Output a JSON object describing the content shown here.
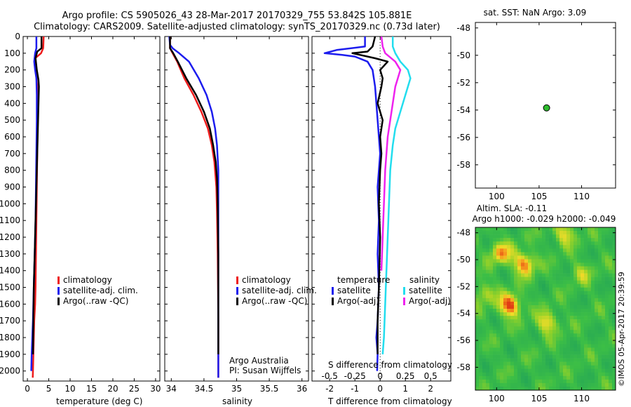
{
  "header": {
    "title_line1": "Argo profile: CS 5905026_43 28-Mar-2017 20170329_755 53.842S 105.881E",
    "title_line2": "Climatology: CARS2009. Satellite-adjusted climatology: synTS_20170329.nc (0.73d later)"
  },
  "colors": {
    "climatology": "#ee1c1c",
    "satellite": "#1c1cee",
    "argo": "#000000",
    "sat_salinity": "#22ddee",
    "argo_salinity": "#ee22ee",
    "dot": "#2dbb2d"
  },
  "footer": {
    "operator": "Argo Australia",
    "pi": "PI: Susan Wijffels",
    "credit": "©IMOS 05-Apr-2017 20:39:59"
  },
  "chart_data": [
    {
      "id": "temperature",
      "type": "line",
      "xlabel": "temperature (deg C)",
      "xlim": [
        -1,
        31
      ],
      "ylim": [
        2060,
        0
      ],
      "xticks": [
        "0",
        "5",
        "10",
        "15",
        "20",
        "25",
        "30"
      ],
      "yticks": [
        "0",
        "100",
        "200",
        "300",
        "400",
        "500",
        "600",
        "700",
        "800",
        "900",
        "1000",
        "1100",
        "1200",
        "1300",
        "1400",
        "1500",
        "1600",
        "1700",
        "1800",
        "1900",
        "2000"
      ],
      "legend": [
        "climatology",
        "satellite-adj. clim.",
        "Argo(..raw -QC)"
      ],
      "series": [
        {
          "name": "climatology",
          "color": "#ee1c1c",
          "x": [
            3.8,
            3.7,
            3.2,
            1.8,
            1.7,
            2.0,
            2.3,
            2.4,
            2.4,
            2.3,
            2.2,
            2.1,
            2.0,
            1.9,
            1.8,
            1.6,
            1.5,
            1.4,
            1.3,
            1.25
          ],
          "y": [
            0,
            70,
            100,
            130,
            170,
            220,
            300,
            400,
            500,
            700,
            900,
            1100,
            1300,
            1500,
            1600,
            1700,
            1800,
            1900,
            2000,
            2040
          ]
        },
        {
          "name": "satellite-adj. clim.",
          "color": "#1c1cee",
          "x": [
            2.1,
            2.1,
            1.8,
            1.6,
            1.8,
            2.1,
            2.2,
            2.2,
            2.1,
            2.0,
            1.9,
            1.7,
            1.5,
            1.3,
            1.0,
            0.9
          ],
          "y": [
            0,
            70,
            100,
            150,
            200,
            250,
            350,
            500,
            700,
            900,
            1100,
            1300,
            1500,
            1700,
            1900,
            2000
          ]
        },
        {
          "name": "Argo(..raw -QC)",
          "color": "#000000",
          "x": [
            3.3,
            3.3,
            2.3,
            1.9,
            2.2,
            2.6,
            2.7,
            2.6,
            2.5,
            2.4,
            2.3,
            2.2,
            2.1,
            2.0,
            1.9,
            1.8,
            1.7,
            1.5,
            1.4,
            1.3
          ],
          "y": [
            0,
            70,
            90,
            130,
            200,
            260,
            300,
            400,
            500,
            600,
            700,
            800,
            900,
            1000,
            1100,
            1200,
            1300,
            1500,
            1700,
            1900
          ]
        }
      ]
    },
    {
      "id": "salinity",
      "type": "line",
      "xlabel": "salinity",
      "xlim": [
        33.9,
        36.1
      ],
      "ylim": [
        2060,
        0
      ],
      "xticks": [
        "34",
        "34.5",
        "35",
        "35.5",
        "36"
      ],
      "legend": [
        "climatology",
        "satellite-adj. clim.",
        "Argo(..raw -QC)"
      ],
      "series": [
        {
          "name": "climatology",
          "color": "#ee1c1c",
          "x": [
            33.98,
            33.98,
            34.02,
            34.09,
            34.2,
            34.34,
            34.46,
            34.56,
            34.62,
            34.66,
            34.69,
            34.7,
            34.71,
            34.72,
            34.72
          ],
          "y": [
            0,
            70,
            100,
            150,
            250,
            350,
            450,
            550,
            650,
            750,
            900,
            1050,
            1300,
            1700,
            2040
          ]
        },
        {
          "name": "satellite-adj. clim.",
          "color": "#1c1cee",
          "x": [
            33.97,
            33.98,
            34.02,
            34.12,
            34.27,
            34.42,
            34.54,
            34.62,
            34.67,
            34.7,
            34.72,
            34.72,
            34.72
          ],
          "y": [
            0,
            50,
            70,
            100,
            150,
            250,
            350,
            450,
            550,
            650,
            800,
            1200,
            2040
          ]
        },
        {
          "name": "Argo(..raw -QC)",
          "color": "#000000",
          "x": [
            33.98,
            33.98,
            34.03,
            34.1,
            34.23,
            34.38,
            34.5,
            34.59,
            34.64,
            34.68,
            34.7,
            34.71,
            34.72,
            34.72
          ],
          "y": [
            0,
            70,
            100,
            150,
            250,
            350,
            450,
            550,
            650,
            750,
            850,
            1000,
            1300,
            1900
          ]
        }
      ]
    },
    {
      "id": "difference",
      "type": "line",
      "xlabel": "T difference from climatology",
      "xlabel_top": "S difference from climatology",
      "xlim": [
        -2.7,
        2.8
      ],
      "ylim": [
        2060,
        0
      ],
      "xticks_bottom": [
        "-2",
        "-1",
        "0",
        "1",
        "2"
      ],
      "xticks_top": [
        "-0.5",
        "-0.25",
        "0",
        "0.25",
        "0.5"
      ],
      "legend_left_title": "temperature",
      "legend_right_title": "salinity",
      "legend_left": [
        "satellite",
        "Argo(-adj)"
      ],
      "legend_right": [
        "satellite",
        "Argo(-adj)"
      ],
      "series": [
        {
          "name": "temperature satellite",
          "color": "#1c1cee",
          "x": [
            -0.6,
            -0.6,
            -1.7,
            -2.2,
            -1.5,
            -1.0,
            -0.5,
            -0.3,
            -0.2,
            -0.15,
            -0.1,
            -0.05,
            0.0,
            -0.05,
            -0.1,
            -0.05,
            -0.1,
            -0.05,
            -0.1,
            -0.15,
            -0.1,
            -0.12
          ],
          "y": [
            0,
            60,
            80,
            100,
            110,
            120,
            150,
            200,
            300,
            400,
            500,
            600,
            700,
            800,
            900,
            1100,
            1300,
            1500,
            1700,
            1800,
            1900,
            2000
          ]
        },
        {
          "name": "temperature Argo(-adj)",
          "color": "#000000",
          "x": [
            -0.2,
            -0.3,
            -0.5,
            -1.1,
            -0.8,
            -0.2,
            0.3,
            0.0,
            0.1,
            0.05,
            -0.1,
            0.1,
            0.0,
            0.05,
            0.0,
            -0.05,
            0.0,
            -0.05,
            -0.1,
            -0.1,
            -0.1
          ],
          "y": [
            0,
            60,
            90,
            100,
            110,
            130,
            150,
            200,
            250,
            300,
            400,
            500,
            600,
            700,
            800,
            1000,
            1200,
            1500,
            1700,
            1800,
            1900
          ]
        },
        {
          "name": "salinity satellite",
          "color": "#22ddee",
          "x": [
            0.5,
            0.5,
            0.6,
            0.8,
            1.1,
            1.2,
            1.0,
            0.8,
            0.6,
            0.5,
            0.4,
            0.35,
            0.3,
            0.25,
            0.2,
            0.15,
            0.1
          ],
          "y": [
            0,
            60,
            100,
            150,
            200,
            250,
            350,
            450,
            550,
            650,
            800,
            1000,
            1200,
            1400,
            1600,
            1800,
            1900
          ]
        },
        {
          "name": "salinity Argo(-adj)",
          "color": "#ee22ee",
          "x": [
            0.05,
            0.1,
            0.2,
            0.6,
            0.8,
            0.7,
            0.6,
            0.5,
            0.4,
            0.3,
            0.25,
            0.2,
            0.15,
            0.1,
            0.05
          ],
          "y": [
            0,
            60,
            100,
            150,
            200,
            250,
            300,
            400,
            500,
            600,
            700,
            800,
            1000,
            1200,
            1400
          ]
        }
      ]
    },
    {
      "id": "position-map",
      "type": "scatter",
      "title": "sat. SST: NaN Argo: 3.09",
      "xlim": [
        97.5,
        114
      ],
      "ylim": [
        -59.7,
        -47.6
      ],
      "xticks": [
        "100",
        "105",
        "110"
      ],
      "yticks": [
        "-48",
        "-50",
        "-52",
        "-54",
        "-56",
        "-58"
      ],
      "points": [
        {
          "lon": 105.881,
          "lat": -53.842
        }
      ]
    },
    {
      "id": "sla-map",
      "type": "heatmap",
      "title_line1": "Altim. SLA: -0.11",
      "title_line2": "Argo h1000: -0.029 h2000: -0.049",
      "xlim": [
        97.5,
        114
      ],
      "ylim": [
        -59.7,
        -47.6
      ],
      "xticks": [
        "100",
        "105",
        "110"
      ],
      "yticks": [
        "-48",
        "-50",
        "-52",
        "-54",
        "-56",
        "-58"
      ],
      "hotspots": [
        {
          "lon": 101.6,
          "lat": -53.4,
          "amp": 1.0
        },
        {
          "lon": 103.3,
          "lat": -50.3,
          "amp": 0.85
        },
        {
          "lon": 100.5,
          "lat": -49.5,
          "amp": 0.7
        },
        {
          "lon": 106.0,
          "lat": -54.7,
          "amp": 0.6
        },
        {
          "lon": 108.0,
          "lat": -48.1,
          "amp": 0.55
        },
        {
          "lon": 98.5,
          "lat": -52.5,
          "amp": 0.45
        },
        {
          "lon": 110.0,
          "lat": -51.0,
          "amp": 0.35
        }
      ]
    }
  ]
}
